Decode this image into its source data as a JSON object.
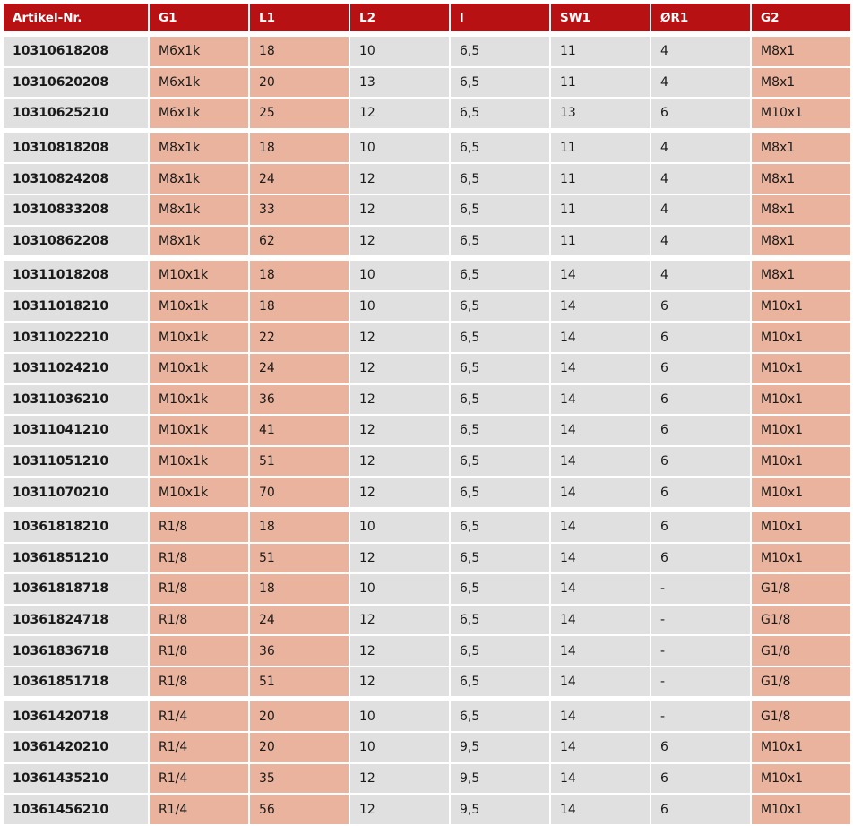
{
  "colors": {
    "header": "#b81113",
    "row": "#e0e0e0",
    "highlight": "#eab39d"
  },
  "headers": [
    "Artikel-Nr.",
    "G1",
    "L1",
    "L2",
    "l",
    "SW1",
    "ØR1",
    "G2"
  ],
  "rows": [
    {
      "group_start": true,
      "cells": [
        "10310618208",
        "M6x1k",
        "18",
        "10",
        "6,5",
        "11",
        "4",
        "M8x1"
      ]
    },
    {
      "cells": [
        "10310620208",
        "M6x1k",
        "20",
        "13",
        "6,5",
        "11",
        "4",
        "M8x1"
      ]
    },
    {
      "cells": [
        "10310625210",
        "M6x1k",
        "25",
        "12",
        "6,5",
        "13",
        "6",
        "M10x1"
      ]
    },
    {
      "group_start": true,
      "cells": [
        "10310818208",
        "M8x1k",
        "18",
        "10",
        "6,5",
        "11",
        "4",
        "M8x1"
      ]
    },
    {
      "cells": [
        "10310824208",
        "M8x1k",
        "24",
        "12",
        "6,5",
        "11",
        "4",
        "M8x1"
      ]
    },
    {
      "cells": [
        "10310833208",
        "M8x1k",
        "33",
        "12",
        "6,5",
        "11",
        "4",
        "M8x1"
      ]
    },
    {
      "cells": [
        "10310862208",
        "M8x1k",
        "62",
        "12",
        "6,5",
        "11",
        "4",
        "M8x1"
      ]
    },
    {
      "group_start": true,
      "cells": [
        "10311018208",
        "M10x1k",
        "18",
        "10",
        "6,5",
        "14",
        "4",
        "M8x1"
      ]
    },
    {
      "cells": [
        "10311018210",
        "M10x1k",
        "18",
        "10",
        "6,5",
        "14",
        "6",
        "M10x1"
      ]
    },
    {
      "cells": [
        "10311022210",
        "M10x1k",
        "22",
        "12",
        "6,5",
        "14",
        "6",
        "M10x1"
      ]
    },
    {
      "cells": [
        "10311024210",
        "M10x1k",
        "24",
        "12",
        "6,5",
        "14",
        "6",
        "M10x1"
      ]
    },
    {
      "cells": [
        "10311036210",
        "M10x1k",
        "36",
        "12",
        "6,5",
        "14",
        "6",
        "M10x1"
      ]
    },
    {
      "cells": [
        "10311041210",
        "M10x1k",
        "41",
        "12",
        "6,5",
        "14",
        "6",
        "M10x1"
      ]
    },
    {
      "cells": [
        "10311051210",
        "M10x1k",
        "51",
        "12",
        "6,5",
        "14",
        "6",
        "M10x1"
      ]
    },
    {
      "cells": [
        "10311070210",
        "M10x1k",
        "70",
        "12",
        "6,5",
        "14",
        "6",
        "M10x1"
      ]
    },
    {
      "group_start": true,
      "cells": [
        "10361818210",
        "R1/8",
        "18",
        "10",
        "6,5",
        "14",
        "6",
        "M10x1"
      ]
    },
    {
      "cells": [
        "10361851210",
        "R1/8",
        "51",
        "12",
        "6,5",
        "14",
        "6",
        "M10x1"
      ]
    },
    {
      "cells": [
        "10361818718",
        "R1/8",
        "18",
        "10",
        "6,5",
        "14",
        "-",
        "G1/8"
      ]
    },
    {
      "cells": [
        "10361824718",
        "R1/8",
        "24",
        "12",
        "6,5",
        "14",
        "-",
        "G1/8"
      ]
    },
    {
      "cells": [
        "10361836718",
        "R1/8",
        "36",
        "12",
        "6,5",
        "14",
        "-",
        "G1/8"
      ]
    },
    {
      "cells": [
        "10361851718",
        "R1/8",
        "51",
        "12",
        "6,5",
        "14",
        "-",
        "G1/8"
      ]
    },
    {
      "group_start": true,
      "cells": [
        "10361420718",
        "R1/4",
        "20",
        "10",
        "6,5",
        "14",
        "-",
        "G1/8"
      ]
    },
    {
      "cells": [
        "10361420210",
        "R1/4",
        "20",
        "10",
        "9,5",
        "14",
        "6",
        "M10x1"
      ]
    },
    {
      "cells": [
        "10361435210",
        "R1/4",
        "35",
        "12",
        "9,5",
        "14",
        "6",
        "M10x1"
      ]
    },
    {
      "cells": [
        "10361456210",
        "R1/4",
        "56",
        "12",
        "9,5",
        "14",
        "6",
        "M10x1"
      ]
    }
  ]
}
